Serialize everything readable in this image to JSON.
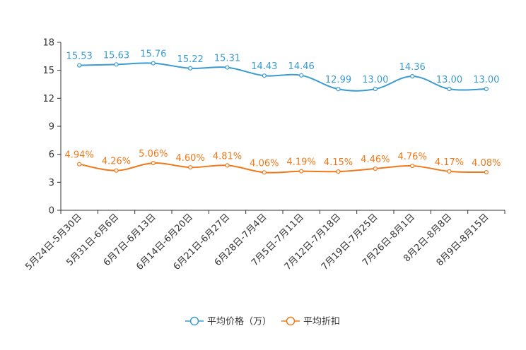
{
  "chart_data": {
    "type": "line",
    "categories": [
      "5月24日-5月30日",
      "5月31日-6月6日",
      "6月7日-6月13日",
      "6月14日-6月20日",
      "6月21日-6月27日",
      "6月28日-7月4日",
      "7月5日-7月11日",
      "7月12日-7月18日",
      "7月19日-7月25日",
      "7月26日-8月1日",
      "8月2日-8月8日",
      "8月9日-8月15日"
    ],
    "series": [
      {
        "name": "平均价格（万）",
        "color": "#3a9bd0",
        "values": [
          15.53,
          15.63,
          15.76,
          15.22,
          15.31,
          14.43,
          14.46,
          12.99,
          13.0,
          14.36,
          13.0,
          13.0
        ],
        "labels": [
          "15.53",
          "15.63",
          "15.76",
          "15.22",
          "15.31",
          "14.43",
          "14.46",
          "12.99",
          "13.00",
          "14.36",
          "13.00",
          "13.00"
        ]
      },
      {
        "name": "平均折扣",
        "color": "#f07818",
        "values": [
          4.94,
          4.26,
          5.06,
          4.6,
          4.81,
          4.06,
          4.19,
          4.15,
          4.46,
          4.76,
          4.17,
          4.08
        ],
        "labels": [
          "4.94%",
          "4.26%",
          "5.06%",
          "4.60%",
          "4.81%",
          "4.06%",
          "4.19%",
          "4.15%",
          "4.46%",
          "4.76%",
          "4.17%",
          "4.08%"
        ]
      }
    ],
    "yticks": [
      "0",
      "3",
      "6",
      "9",
      "12",
      "15",
      "18"
    ],
    "ylim": [
      0,
      18
    ],
    "title": "",
    "xlabel": "",
    "ylabel": "",
    "legend_position": "bottom-center"
  }
}
